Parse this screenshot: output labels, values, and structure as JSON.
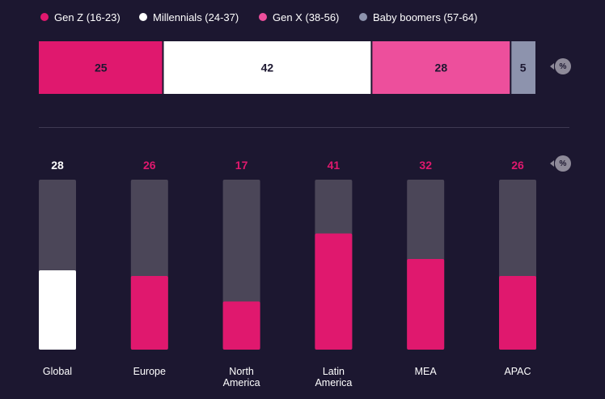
{
  "percent_badge": "%",
  "colors": {
    "genz": "#e0186e",
    "millennials": "#ffffff",
    "genx": "#ed4f9c",
    "boomers": "#8d93ad",
    "track": "#4b4658",
    "background": "#1c1730"
  },
  "chart_data": [
    {
      "type": "bar",
      "orientation": "horizontal-stacked",
      "legend_position": "top-left",
      "unit": "%",
      "series": [
        {
          "name": "Gen Z (16-23)",
          "value": 25,
          "color": "#e0186e"
        },
        {
          "name": "Millennials (24-37)",
          "value": 42,
          "color": "#ffffff"
        },
        {
          "name": "Gen X (38-56)",
          "value": 28,
          "color": "#ed4f9c"
        },
        {
          "name": "Baby boomers (57-64)",
          "value": 5,
          "color": "#8d93ad"
        }
      ]
    },
    {
      "type": "bar",
      "orientation": "vertical",
      "unit": "%",
      "ylim": [
        0,
        60
      ],
      "categories": [
        {
          "label": [
            "Global"
          ],
          "value": 28,
          "highlight": true
        },
        {
          "label": [
            "Europe"
          ],
          "value": 26
        },
        {
          "label": [
            "North",
            "America"
          ],
          "value": 17
        },
        {
          "label": [
            "Latin",
            "America"
          ],
          "value": 41
        },
        {
          "label": [
            "MEA"
          ],
          "value": 32
        },
        {
          "label": [
            "APAC"
          ],
          "value": 26
        }
      ]
    }
  ]
}
